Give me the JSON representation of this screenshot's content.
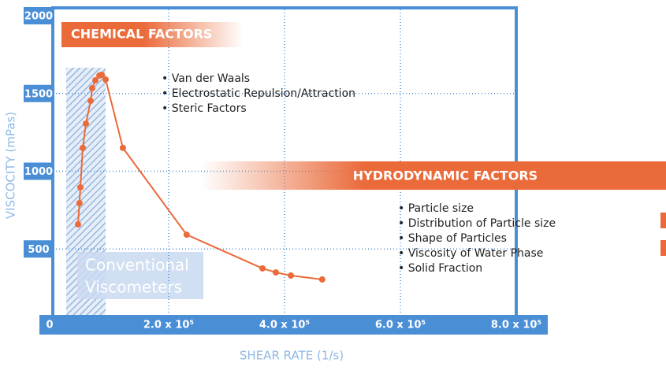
{
  "chart_data": {
    "type": "line",
    "x_label": "SHEAR RATE (1/s)",
    "y_label": "VISCOCITY (mPas)",
    "x": [
      43500,
      46000,
      47600,
      51700,
      57100,
      65300,
      68000,
      73500,
      80300,
      84400,
      91200,
      121000,
      231000,
      362000,
      385000,
      411000,
      465000
    ],
    "series": [
      {
        "color": "#ea6a3a",
        "values": [
          658,
          795,
          896,
          1150,
          1306,
          1453,
          1534,
          1585,
          1615,
          1620,
          1590,
          1150,
          592,
          375,
          349,
          329,
          304
        ]
      }
    ],
    "xlim": [
      0,
      800000
    ],
    "ylim": [
      0,
      2000
    ],
    "xticks": [
      0,
      {
        "value": 200000,
        "label": "2.0 x 10⁵"
      },
      {
        "value": 400000,
        "label": "4.0 x 10⁵"
      },
      {
        "value": 600000,
        "label": "6.0 x 10⁵"
      },
      {
        "value": 800000,
        "label": "8.0 x 10⁵"
      }
    ],
    "yticks": [
      500,
      1000,
      1500,
      2000
    ],
    "grid": true,
    "annotations": {
      "chemical_title": "CHEMICAL FACTORS",
      "chemical_items": [
        "• Van der Waals",
        "• Electrostatic Repulsion/Attraction",
        "• Steric Factors"
      ],
      "hydro_title": "HYDRODYNAMIC FACTORS",
      "hydro_items": [
        "• Particle size",
        "• Distribution of Particle size",
        "• Shape of Particles",
        "• Viscosity of Water Phase",
        "• Solid Fraction"
      ],
      "region_label": [
        "Conventional",
        "Viscometers"
      ]
    }
  }
}
